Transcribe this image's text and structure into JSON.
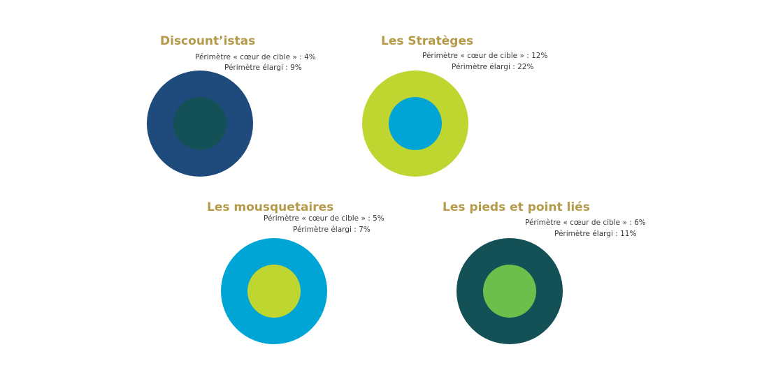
{
  "segments": [
    {
      "title": "Discount’istas",
      "core_label": "Périmètre « cœur de cible » : 4%",
      "extended_label": "Périmètre élargi : 9%",
      "core_percent": 4,
      "extended_percent": 9,
      "outer_color": "#1f4a7c",
      "inner_color": "#135157"
    },
    {
      "title": "Les Stratèges",
      "core_label": "Périmètre « cœur de cible » : 12%",
      "extended_label": "Périmètre élargi : 22%",
      "core_percent": 12,
      "extended_percent": 22,
      "outer_color": "#bfd631",
      "inner_color": "#00a5d6"
    },
    {
      "title": "Les mousquetaires",
      "core_label": "Périmètre « cœur de cible » : 5%",
      "extended_label": "Périmètre élargi : 7%",
      "core_percent": 5,
      "extended_percent": 7,
      "outer_color": "#00a5d6",
      "inner_color": "#bfd631"
    },
    {
      "title": "Les pieds et point liés",
      "core_label": "Périmètre « cœur de cible » : 6%",
      "extended_label": "Périmètre élargi : 11%",
      "core_percent": 6,
      "extended_percent": 11,
      "outer_color": "#135157",
      "inner_color": "#6bbf4a"
    }
  ]
}
